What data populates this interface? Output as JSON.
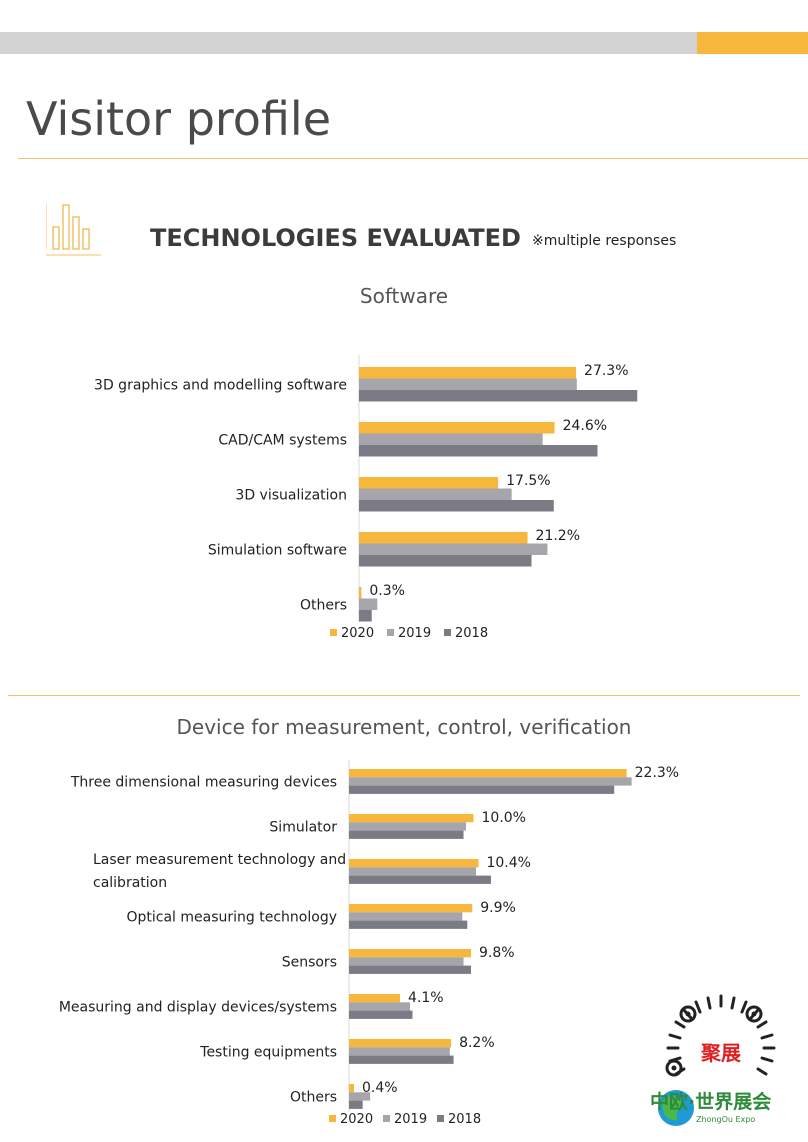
{
  "page": {
    "title": "Visitor profile",
    "section_title": "TECHNOLOGIES EVALUATED",
    "section_note": "※multiple responses"
  },
  "colors": {
    "accent": "#f6b73c",
    "s2020": "#f6b73c",
    "s2019": "#a5a5ab",
    "s2018": "#7b7b85",
    "rule": "#f2c26a",
    "topbar": "#d2d2d2"
  },
  "icons": {
    "section_icon": "bar-chart-icon",
    "logo": "zhongou-expo-logo"
  },
  "logo": {
    "brand_cn": "中欧·世界展会",
    "brand_en": "ZhongOu Expo",
    "qr_cn": "聚展"
  },
  "chart_data": [
    {
      "type": "bar",
      "orientation": "horizontal",
      "title": "Software",
      "categories": [
        "3D graphics and modelling software",
        "CAD/CAM systems",
        "3D visualization",
        "Simulation software",
        "Others"
      ],
      "series": [
        {
          "name": "2020",
          "values": [
            27.3,
            24.6,
            17.5,
            21.2,
            0.3
          ]
        },
        {
          "name": "2019",
          "values": [
            27.4,
            23.1,
            19.2,
            23.7,
            2.3
          ]
        },
        {
          "name": "2018",
          "values": [
            35.0,
            30.0,
            24.5,
            21.7,
            1.6
          ]
        }
      ],
      "value_labels": [
        "27.3%",
        "24.6%",
        "17.5%",
        "21.2%",
        "0.3%"
      ],
      "legend": {
        "position": "bottom",
        "entries": [
          "2020",
          "2019",
          "2018"
        ]
      },
      "xlim": [
        0,
        40
      ],
      "grid": false
    },
    {
      "type": "bar",
      "orientation": "horizontal",
      "title": "Device for measurement, control, verification",
      "categories": [
        "Three dimensional measuring devices",
        "Simulator",
        "Laser measurement technology and calibration",
        "Optical measuring technology",
        "Sensors",
        "Measuring and display devices/systems",
        "Testing equipments",
        "Others"
      ],
      "category_lines": [
        [
          "Three dimensional measuring devices"
        ],
        [
          "Simulator"
        ],
        [
          "Laser measurement technology and",
          "calibration"
        ],
        [
          "Optical measuring technology"
        ],
        [
          "Sensors"
        ],
        [
          "Measuring and display devices/systems"
        ],
        [
          "Testing equipments"
        ],
        [
          "Others"
        ]
      ],
      "series": [
        {
          "name": "2020",
          "values": [
            22.3,
            10.0,
            10.4,
            9.9,
            9.8,
            4.1,
            8.2,
            0.4
          ]
        },
        {
          "name": "2019",
          "values": [
            22.7,
            9.4,
            10.2,
            9.1,
            9.2,
            4.9,
            8.1,
            1.7
          ]
        },
        {
          "name": "2018",
          "values": [
            21.3,
            9.2,
            11.4,
            9.5,
            9.8,
            5.1,
            8.4,
            1.1
          ]
        }
      ],
      "value_labels": [
        "22.3%",
        "10.0%",
        "10.4%",
        "9.9%",
        "9.8%",
        "4.1%",
        "8.2%",
        "0.4%"
      ],
      "legend": {
        "position": "bottom",
        "entries": [
          "2020",
          "2019",
          "2018"
        ]
      },
      "xlim": [
        0,
        25
      ],
      "grid": false
    }
  ]
}
